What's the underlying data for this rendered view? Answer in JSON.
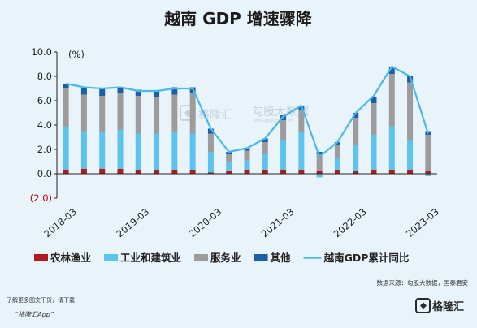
{
  "chart_data": {
    "type": "bar",
    "stacked": true,
    "title": "越南 GDP 增速骤降",
    "yunit": "(%)",
    "ylim": [
      -2,
      10
    ],
    "yticks": [
      "10.0",
      "8.0",
      "6.0",
      "4.0",
      "2.0",
      "0.0",
      "(2.0)"
    ],
    "ytick_values": [
      10,
      8,
      6,
      4,
      2,
      0,
      -2
    ],
    "x_labels": [
      "2018-03",
      "2019-03",
      "2020-03",
      "2021-03",
      "2022-03",
      "2023-03"
    ],
    "x_label_index": [
      0,
      4,
      8,
      12,
      16,
      20
    ],
    "categories": [
      "2018Q1",
      "2018Q2",
      "2018Q3",
      "2018Q4",
      "2019Q1",
      "2019Q2",
      "2019Q3",
      "2019Q4",
      "2020Q1",
      "2020Q2",
      "2020Q3",
      "2020Q4",
      "2021Q1",
      "2021Q2",
      "2021Q3",
      "2021Q4",
      "2022Q1",
      "2022Q2",
      "2022Q3",
      "2022Q4",
      "2023Q1"
    ],
    "series": [
      {
        "name": "农林渔业",
        "color": "#b11a1f",
        "values": [
          0.3,
          0.4,
          0.4,
          0.4,
          0.3,
          0.3,
          0.3,
          0.3,
          0.1,
          0.2,
          0.3,
          0.3,
          0.3,
          0.3,
          0.2,
          0.3,
          0.2,
          0.3,
          0.3,
          0.3,
          0.2
        ]
      },
      {
        "name": "工业和建筑业",
        "color": "#5cc3ef",
        "values": [
          3.5,
          3.1,
          3.0,
          3.2,
          3.0,
          3.0,
          3.1,
          3.0,
          1.7,
          0.8,
          0.8,
          1.3,
          2.4,
          3.1,
          -0.3,
          1.0,
          2.2,
          2.9,
          3.6,
          2.5,
          -0.2
        ]
      },
      {
        "name": "服务业",
        "color": "#9c9c9c",
        "values": [
          3.2,
          3.0,
          3.0,
          3.0,
          3.1,
          3.0,
          3.1,
          3.3,
          1.5,
          0.6,
          0.8,
          1.0,
          1.7,
          1.8,
          1.4,
          1.1,
          2.2,
          2.6,
          4.3,
          4.7,
          3.0
        ]
      },
      {
        "name": "其他",
        "color": "#1c5fa8",
        "values": [
          0.4,
          0.6,
          0.6,
          0.5,
          0.5,
          0.5,
          0.6,
          0.5,
          0.4,
          0.2,
          0.2,
          0.3,
          0.4,
          0.4,
          0.2,
          0.2,
          0.4,
          0.5,
          0.6,
          0.5,
          0.3
        ]
      }
    ],
    "line": {
      "name": "越南GDP累计同比",
      "color": "#4ab9ea",
      "values": [
        7.4,
        7.1,
        7.0,
        7.1,
        6.8,
        6.8,
        7.0,
        7.0,
        3.7,
        1.8,
        2.1,
        2.9,
        4.7,
        5.6,
        1.4,
        2.6,
        5.0,
        6.4,
        8.8,
        8.0,
        3.3
      ]
    },
    "legend_position": "bottom"
  },
  "footer": {
    "source": "数据来源：勾股大数据，国泰君安",
    "download_hint": "了解更多图文干货，请下载",
    "app_name": "“格隆汇App”",
    "logo_text": "格隆汇"
  },
  "watermark": {
    "left": "格隆汇",
    "right": "勾股大数据",
    "url": "www.gogudata.com"
  }
}
